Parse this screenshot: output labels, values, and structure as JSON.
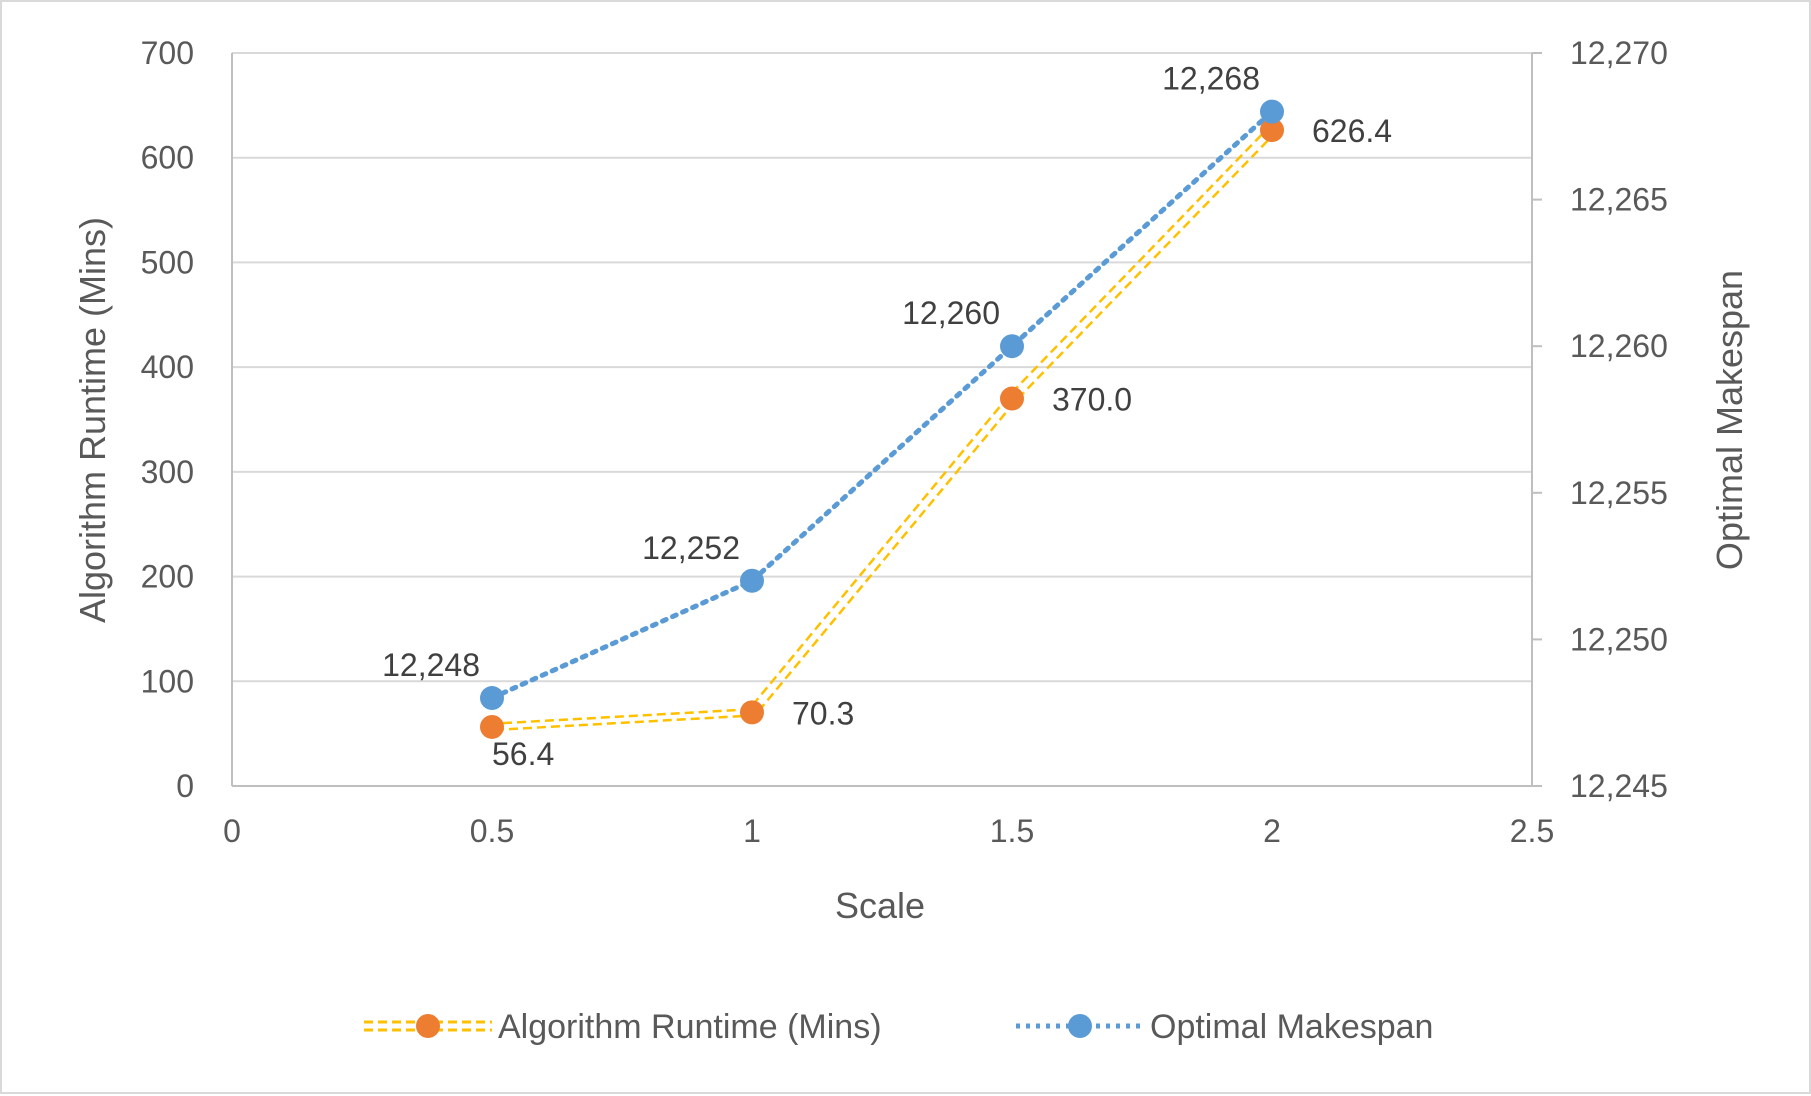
{
  "chart_data": {
    "type": "line",
    "title": "",
    "xlabel": "Scale",
    "ylabel": "Algorithm Runtime (Mins)",
    "y2label": "Optimal Makespan",
    "xlim": [
      0,
      2.5
    ],
    "ylim": [
      0,
      700
    ],
    "y2lim": [
      12245,
      12270
    ],
    "x_ticks": [
      "0",
      "0.5",
      "1",
      "1.5",
      "2",
      "2.5"
    ],
    "y_ticks": [
      "0",
      "100",
      "200",
      "300",
      "400",
      "500",
      "600",
      "700"
    ],
    "y2_ticks": [
      "12,245",
      "12,250",
      "12,255",
      "12,260",
      "12,265",
      "12,270"
    ],
    "grid": true,
    "legend_position": "bottom",
    "series": [
      {
        "name": "Algorithm Runtime (Mins)",
        "axis": "left",
        "color": "#ED7D31",
        "line_color": "#FFC000",
        "line_style": "double-dashed",
        "x": [
          0.5,
          1,
          1.5,
          2
        ],
        "values": [
          56.4,
          70.3,
          370.0,
          626.4
        ],
        "labels": [
          "56.4",
          "70.3",
          "370.0",
          "626.4"
        ]
      },
      {
        "name": "Optimal Makespan",
        "axis": "right",
        "color": "#5B9BD5",
        "line_color": "#5B9BD5",
        "line_style": "dotted",
        "x": [
          0.5,
          1,
          1.5,
          2
        ],
        "values": [
          12248,
          12252,
          12260,
          12268
        ],
        "labels": [
          "12,248",
          "12,252",
          "12,260",
          "12,268"
        ]
      }
    ]
  }
}
